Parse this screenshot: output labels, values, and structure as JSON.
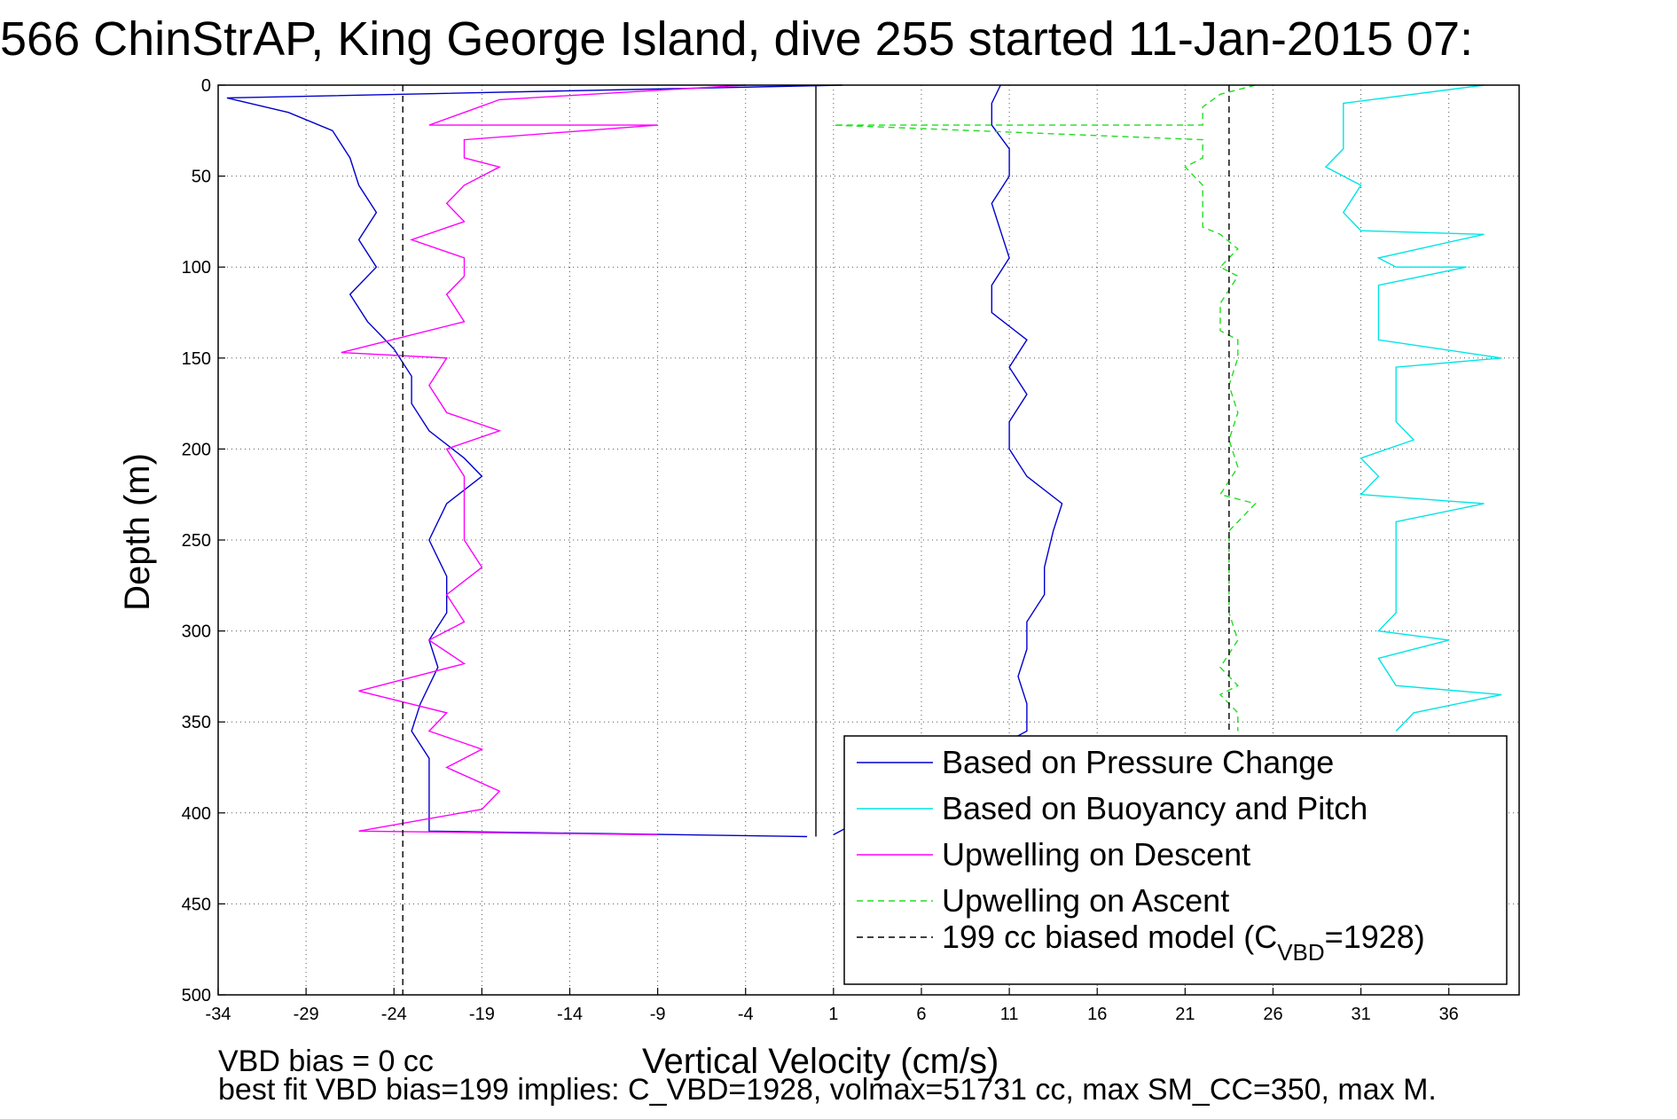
{
  "chart_data": {
    "type": "line",
    "title": "566 ChinStrAP, King George Island, dive 255 started 11-Jan-2015 07:",
    "xlabel": "Vertical Velocity (cm/s)",
    "ylabel": "Depth (m)",
    "xlim": [
      -34,
      40
    ],
    "ylim": [
      0,
      500
    ],
    "y_reversed": true,
    "grid": true,
    "xticks": [
      "-34",
      "-29",
      "-24",
      "-19",
      "-14",
      "-9",
      "-4",
      "1",
      "6",
      "11",
      "16",
      "21",
      "26",
      "31",
      "36"
    ],
    "yticks": [
      "0",
      "50",
      "100",
      "150",
      "200",
      "250",
      "300",
      "350",
      "400",
      "450",
      "500"
    ],
    "legend_position": "bottom-right",
    "series": [
      {
        "name": "Based on Pressure Change",
        "color": "#0000cc",
        "style": "solid",
        "segments": [
          {
            "label": "descent",
            "points": [
              [
                1.5,
                0
              ],
              [
                -33.5,
                7
              ],
              [
                -30,
                15
              ],
              [
                -27.5,
                25
              ],
              [
                -26.5,
                40
              ],
              [
                -26,
                55
              ],
              [
                -25,
                70
              ],
              [
                -26,
                85
              ],
              [
                -25,
                100
              ],
              [
                -26.5,
                115
              ],
              [
                -25.5,
                130
              ],
              [
                -24,
                145
              ],
              [
                -23,
                160
              ],
              [
                -23,
                175
              ],
              [
                -22,
                190
              ],
              [
                -20,
                205
              ],
              [
                -19,
                215
              ],
              [
                -21,
                230
              ],
              [
                -22,
                250
              ],
              [
                -21,
                270
              ],
              [
                -21,
                290
              ],
              [
                -22,
                305
              ],
              [
                -21.5,
                320
              ],
              [
                -22.5,
                340
              ],
              [
                -23,
                355
              ],
              [
                -22,
                370
              ],
              [
                -22,
                385
              ],
              [
                -22,
                400
              ],
              [
                -22,
                410
              ],
              [
                -0.5,
                413
              ]
            ]
          },
          {
            "label": "ascent",
            "points": [
              [
                1,
                412
              ],
              [
                12,
                355
              ],
              [
                12,
                340
              ],
              [
                11.5,
                325
              ],
              [
                12,
                310
              ],
              [
                12,
                295
              ],
              [
                13,
                280
              ],
              [
                13,
                265
              ],
              [
                13.5,
                245
              ],
              [
                14,
                230
              ],
              [
                12,
                215
              ],
              [
                11,
                200
              ],
              [
                11,
                185
              ],
              [
                12,
                170
              ],
              [
                11,
                155
              ],
              [
                12,
                140
              ],
              [
                10,
                125
              ],
              [
                10,
                110
              ],
              [
                11,
                95
              ],
              [
                10.5,
                80
              ],
              [
                10,
                65
              ],
              [
                11,
                50
              ],
              [
                11,
                35
              ],
              [
                10,
                22
              ],
              [
                10,
                10
              ],
              [
                10.5,
                0
              ]
            ]
          }
        ]
      },
      {
        "name": "Based on Buoyancy and Pitch",
        "color": "#00e5e5",
        "style": "solid",
        "segments": [
          {
            "label": "ascent",
            "points": [
              [
                38,
                0
              ],
              [
                30,
                10
              ],
              [
                30,
                22
              ],
              [
                30,
                35
              ],
              [
                29,
                45
              ],
              [
                31,
                55
              ],
              [
                30,
                70
              ],
              [
                31,
                80
              ],
              [
                38,
                82
              ],
              [
                32,
                95
              ],
              [
                33,
                100
              ],
              [
                37,
                100
              ],
              [
                32,
                110
              ],
              [
                32,
                125
              ],
              [
                32,
                140
              ],
              [
                39,
                150
              ],
              [
                33,
                155
              ],
              [
                33,
                170
              ],
              [
                33,
                185
              ],
              [
                34,
                195
              ],
              [
                31,
                205
              ],
              [
                32,
                215
              ],
              [
                31,
                225
              ],
              [
                38,
                230
              ],
              [
                33,
                240
              ],
              [
                33,
                255
              ],
              [
                33,
                275
              ],
              [
                33,
                290
              ],
              [
                32,
                300
              ],
              [
                36,
                305
              ],
              [
                32,
                315
              ],
              [
                33,
                330
              ],
              [
                39,
                335
              ],
              [
                34,
                345
              ],
              [
                33,
                355
              ]
            ]
          }
        ]
      },
      {
        "name": "Upwelling on Descent",
        "color": "#ff00ff",
        "style": "solid",
        "segments": [
          {
            "label": "descent",
            "points": [
              [
                -4,
                0
              ],
              [
                -18,
                8
              ],
              [
                -20,
                15
              ],
              [
                -22,
                22
              ],
              [
                -9,
                22
              ],
              [
                -20,
                30
              ],
              [
                -20,
                40
              ],
              [
                -18,
                45
              ],
              [
                -20,
                55
              ],
              [
                -21,
                65
              ],
              [
                -20,
                75
              ],
              [
                -23,
                85
              ],
              [
                -20,
                95
              ],
              [
                -20,
                105
              ],
              [
                -21,
                115
              ],
              [
                -20,
                130
              ],
              [
                -27,
                147
              ],
              [
                -21,
                150
              ],
              [
                -22,
                165
              ],
              [
                -21,
                180
              ],
              [
                -18,
                190
              ],
              [
                -21,
                200
              ],
              [
                -20,
                215
              ],
              [
                -20,
                230
              ],
              [
                -20,
                250
              ],
              [
                -19,
                265
              ],
              [
                -21,
                280
              ],
              [
                -20,
                295
              ],
              [
                -22,
                305
              ],
              [
                -20,
                318
              ],
              [
                -26,
                333
              ],
              [
                -21,
                345
              ],
              [
                -22,
                355
              ],
              [
                -19,
                365
              ],
              [
                -21,
                375
              ],
              [
                -18,
                388
              ],
              [
                -19,
                398
              ],
              [
                -26,
                410
              ],
              [
                -9,
                412
              ]
            ]
          }
        ]
      },
      {
        "name": "Upwelling on Ascent",
        "color": "#22dd22",
        "style": "dashed",
        "segments": [
          {
            "label": "ascent",
            "points": [
              [
                25,
                0
              ],
              [
                23,
                5
              ],
              [
                22,
                12
              ],
              [
                22,
                22
              ],
              [
                1,
                22
              ],
              [
                22,
                30
              ],
              [
                22,
                40
              ],
              [
                21,
                45
              ],
              [
                22,
                55
              ],
              [
                22,
                65
              ],
              [
                22,
                78
              ],
              [
                23,
                82
              ],
              [
                24,
                90
              ],
              [
                23,
                100
              ],
              [
                24,
                105
              ],
              [
                23,
                120
              ],
              [
                23,
                135
              ],
              [
                24,
                140
              ],
              [
                24,
                150
              ],
              [
                23.5,
                165
              ],
              [
                24,
                180
              ],
              [
                23.5,
                195
              ],
              [
                24,
                210
              ],
              [
                23,
                225
              ],
              [
                25,
                230
              ],
              [
                23.5,
                245
              ],
              [
                23.5,
                265
              ],
              [
                23.5,
                290
              ],
              [
                24,
                305
              ],
              [
                23,
                320
              ],
              [
                24,
                330
              ],
              [
                23,
                335
              ],
              [
                24,
                345
              ],
              [
                24,
                355
              ]
            ]
          }
        ]
      },
      {
        "name": "199 cc biased model (C_VBD=1928)",
        "color": "#000000",
        "style": "dashed",
        "segments": [
          {
            "label": "descent",
            "points": [
              [
                -23.5,
                0
              ],
              [
                -23.5,
                500
              ]
            ]
          },
          {
            "label": "ascent",
            "points": [
              [
                23.5,
                0
              ],
              [
                23.5,
                355
              ]
            ]
          }
        ]
      }
    ],
    "reference_lines": [
      {
        "x": 0,
        "ymin": 0,
        "ymax": 413,
        "color": "#000000",
        "style": "solid"
      }
    ],
    "annotations": [
      "VBD bias = 0 cc",
      "best fit VBD bias=199 implies: C_VBD=1928, volmax=51731 cc, max SM_CC=350, max M."
    ],
    "legend_entries": [
      {
        "text": "Based on Pressure Change",
        "color": "#0000cc",
        "style": "solid"
      },
      {
        "text": "Based on Buoyancy and Pitch",
        "color": "#00e5e5",
        "style": "solid"
      },
      {
        "text": "Upwelling on Descent",
        "color": "#ff00ff",
        "style": "solid"
      },
      {
        "text": "Upwelling on Ascent",
        "color": "#22dd22",
        "style": "dashed"
      },
      {
        "text": "199 cc biased model (C",
        "sub": "VBD",
        "tail": "=1928)",
        "color": "#000000",
        "style": "dashed"
      }
    ]
  }
}
